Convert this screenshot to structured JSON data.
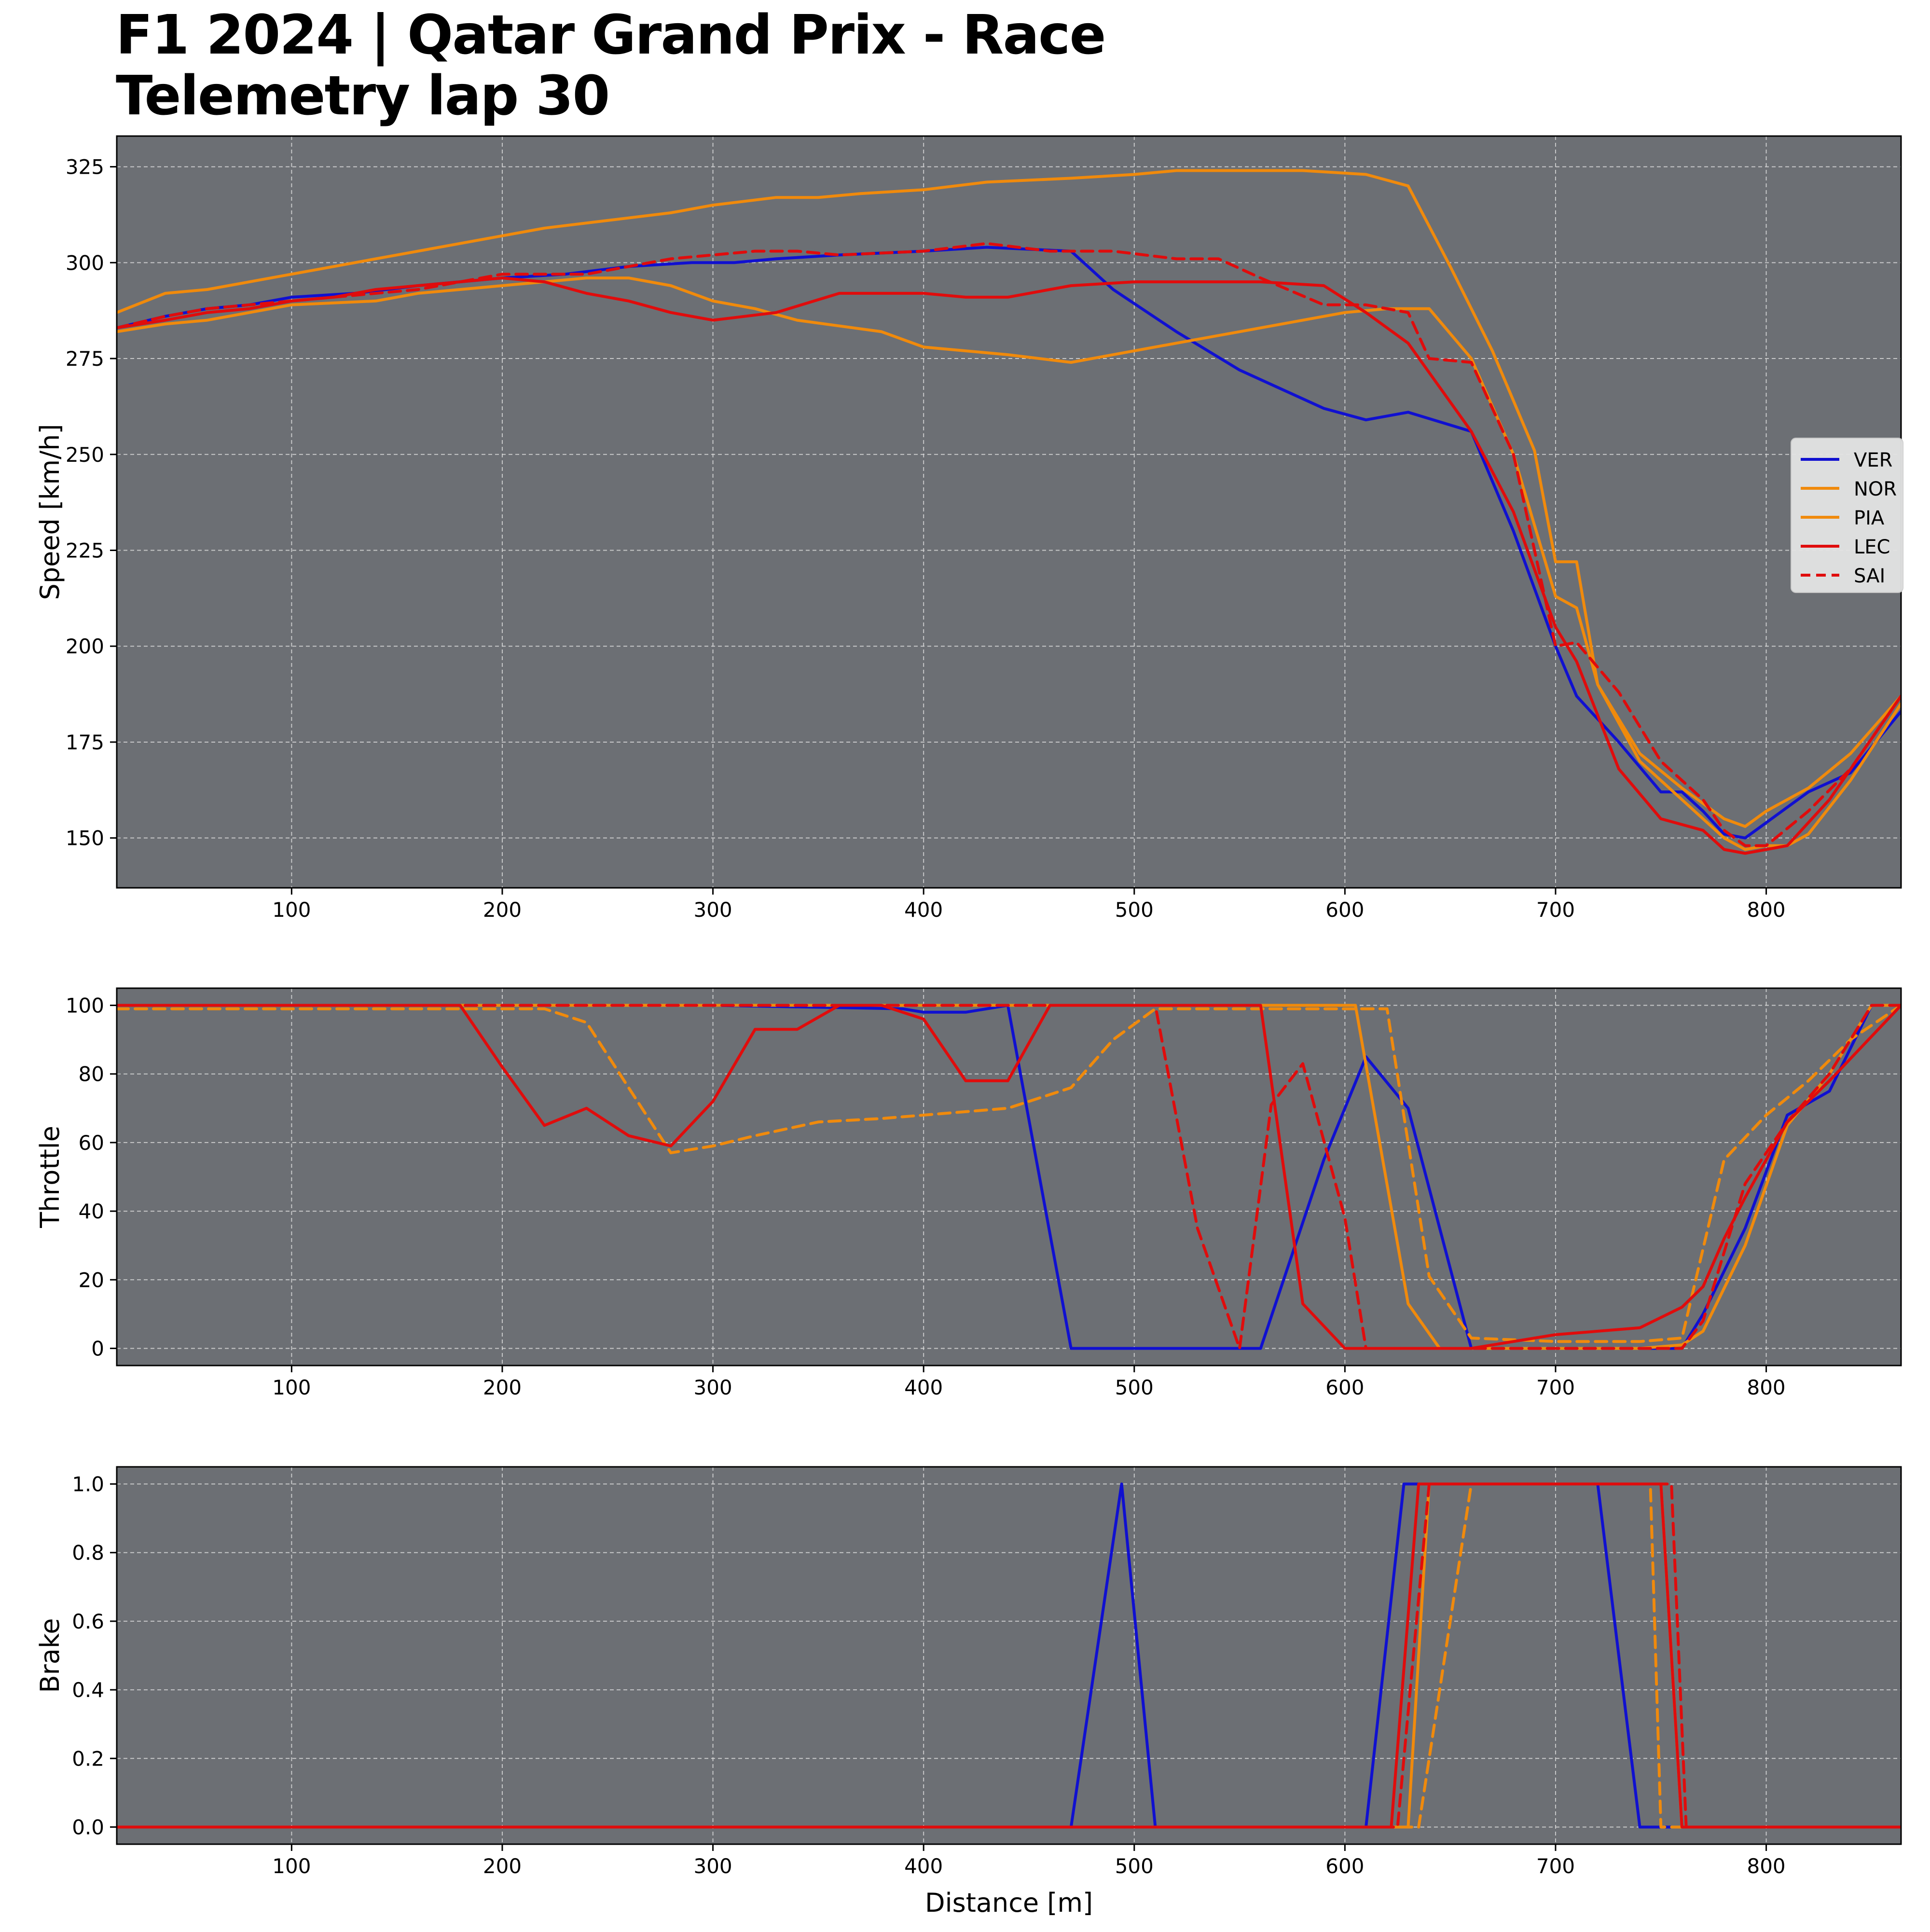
{
  "figure": {
    "title_line_1": "F1 2024 | Qatar Grand Prix - Race",
    "title_line_2": "Telemetry lap 30"
  },
  "colors": {
    "panel_bg": "#6c6f74",
    "grid": "#d8d8d8",
    "VER": "#1010d0",
    "NOR": "#f08a0c",
    "PIA": "#f08a0c",
    "LEC": "#e00c0c",
    "SAI": "#e00c0c"
  },
  "chart_data": [
    {
      "type": "line",
      "id": "speed",
      "ylabel": "Speed [km/h]",
      "xlabel": "",
      "xlim": [
        17,
        864
      ],
      "ylim": [
        137,
        333
      ],
      "xticks": [
        100,
        200,
        300,
        400,
        500,
        600,
        700,
        800
      ],
      "yticks": [
        150,
        175,
        200,
        225,
        250,
        275,
        300,
        325
      ],
      "grid": true,
      "legend": "center-right",
      "series": [
        {
          "name": "VER",
          "dash": false,
          "x": [
            17,
            40,
            60,
            80,
            100,
            130,
            160,
            200,
            230,
            260,
            290,
            310,
            330,
            360,
            400,
            430,
            470,
            490,
            520,
            550,
            590,
            610,
            630,
            660,
            680,
            700,
            710,
            730,
            750,
            760,
            770,
            780,
            790,
            800,
            810,
            820,
            840,
            864
          ],
          "y": [
            283,
            286,
            288,
            289,
            291,
            292,
            294,
            296,
            297,
            299,
            300,
            300,
            301,
            302,
            303,
            304,
            303,
            293,
            282,
            272,
            262,
            259,
            261,
            256,
            230,
            200,
            187,
            175,
            162,
            162,
            157,
            151,
            150,
            154,
            158,
            162,
            167,
            183
          ]
        },
        {
          "name": "NOR",
          "dash": false,
          "x": [
            17,
            40,
            60,
            80,
            100,
            120,
            150,
            180,
            200,
            220,
            250,
            280,
            300,
            330,
            350,
            370,
            400,
            430,
            470,
            500,
            520,
            550,
            580,
            610,
            630,
            650,
            670,
            690,
            700,
            710,
            720,
            740,
            760,
            780,
            790,
            800,
            810,
            820,
            840,
            864
          ],
          "y": [
            287,
            292,
            293,
            295,
            297,
            299,
            302,
            305,
            307,
            309,
            311,
            313,
            315,
            317,
            317,
            318,
            319,
            321,
            322,
            323,
            324,
            324,
            324,
            323,
            320,
            299,
            277,
            251,
            222,
            222,
            190,
            170,
            160,
            150,
            147,
            148,
            148,
            151,
            165,
            185
          ]
        },
        {
          "name": "PIA",
          "dash": false,
          "x": [
            17,
            40,
            60,
            80,
            100,
            140,
            160,
            200,
            240,
            260,
            280,
            300,
            320,
            340,
            380,
            400,
            440,
            470,
            500,
            520,
            550,
            580,
            600,
            620,
            640,
            660,
            680,
            700,
            710,
            720,
            740,
            760,
            780,
            790,
            800,
            820,
            840,
            864
          ],
          "y": [
            282,
            284,
            285,
            287,
            289,
            290,
            292,
            294,
            296,
            296,
            294,
            290,
            288,
            285,
            282,
            278,
            276,
            274,
            277,
            279,
            282,
            285,
            287,
            288,
            288,
            275,
            250,
            213,
            210,
            190,
            172,
            163,
            155,
            153,
            157,
            163,
            172,
            187
          ]
        },
        {
          "name": "LEC",
          "dash": false,
          "x": [
            17,
            40,
            60,
            80,
            100,
            120,
            140,
            160,
            180,
            200,
            220,
            240,
            260,
            280,
            300,
            330,
            360,
            400,
            420,
            440,
            470,
            500,
            520,
            560,
            590,
            610,
            630,
            660,
            680,
            700,
            710,
            730,
            750,
            770,
            780,
            790,
            810,
            830,
            864
          ],
          "y": [
            283,
            285,
            287,
            288,
            290,
            291,
            293,
            294,
            295,
            296,
            295,
            292,
            290,
            287,
            285,
            287,
            292,
            292,
            291,
            291,
            294,
            295,
            295,
            295,
            294,
            287,
            279,
            256,
            235,
            205,
            196,
            168,
            155,
            152,
            147,
            146,
            148,
            160,
            187
          ]
        },
        {
          "name": "SAI",
          "dash": true,
          "x": [
            17,
            40,
            60,
            80,
            100,
            120,
            140,
            160,
            180,
            200,
            220,
            240,
            260,
            280,
            300,
            320,
            340,
            360,
            400,
            430,
            460,
            490,
            520,
            540,
            560,
            590,
            610,
            630,
            640,
            660,
            680,
            700,
            710,
            730,
            750,
            770,
            780,
            790,
            800,
            820,
            840,
            864
          ],
          "y": [
            283,
            286,
            288,
            289,
            290,
            291,
            292,
            293,
            295,
            297,
            297,
            297,
            299,
            301,
            302,
            303,
            303,
            302,
            303,
            305,
            303,
            303,
            301,
            301,
            296,
            289,
            289,
            287,
            275,
            274,
            250,
            200,
            201,
            188,
            170,
            160,
            152,
            148,
            148,
            157,
            168,
            187
          ]
        }
      ]
    },
    {
      "type": "line",
      "id": "throttle",
      "ylabel": "Throttle",
      "xlabel": "",
      "xlim": [
        17,
        864
      ],
      "ylim": [
        -5,
        105
      ],
      "xticks": [
        100,
        200,
        300,
        400,
        500,
        600,
        700,
        800
      ],
      "yticks": [
        0,
        20,
        40,
        60,
        80,
        100
      ],
      "grid": true,
      "series": [
        {
          "name": "VER",
          "dash": false,
          "x": [
            17,
            100,
            200,
            300,
            390,
            400,
            420,
            440,
            470,
            500,
            520,
            540,
            560,
            590,
            610,
            630,
            660,
            700,
            740,
            760,
            770,
            790,
            810,
            830,
            850,
            864
          ],
          "y": [
            100,
            100,
            100,
            100,
            99,
            98,
            98,
            100,
            0,
            0,
            0,
            0,
            0,
            55,
            85,
            70,
            0,
            0,
            0,
            0,
            10,
            35,
            68,
            75,
            100,
            100
          ]
        },
        {
          "name": "NOR",
          "dash": false,
          "x": [
            17,
            100,
            200,
            300,
            400,
            500,
            520,
            550,
            590,
            605,
            630,
            645,
            660,
            700,
            740,
            760,
            770,
            790,
            810,
            830,
            850,
            864
          ],
          "y": [
            100,
            100,
            100,
            100,
            100,
            100,
            100,
            100,
            100,
            100,
            13,
            0,
            0,
            0,
            0,
            1,
            5,
            30,
            65,
            80,
            100,
            100
          ]
        },
        {
          "name": "PIA",
          "dash": true,
          "x": [
            17,
            100,
            200,
            220,
            240,
            260,
            280,
            300,
            320,
            350,
            380,
            420,
            440,
            470,
            490,
            510,
            540,
            560,
            600,
            620,
            640,
            660,
            700,
            740,
            760,
            780,
            800,
            820,
            840,
            864
          ],
          "y": [
            99,
            99,
            99,
            99,
            95,
            76,
            57,
            59,
            62,
            66,
            67,
            69,
            70,
            76,
            90,
            99,
            99,
            99,
            99,
            99,
            21,
            3,
            2,
            2,
            3,
            55,
            68,
            78,
            90,
            100
          ]
        },
        {
          "name": "LEC",
          "dash": false,
          "x": [
            17,
            100,
            180,
            200,
            220,
            240,
            260,
            280,
            300,
            320,
            340,
            360,
            380,
            400,
            420,
            440,
            460,
            500,
            540,
            560,
            580,
            600,
            620,
            660,
            680,
            700,
            720,
            740,
            760,
            770,
            780,
            790,
            810,
            830,
            864
          ],
          "y": [
            100,
            100,
            100,
            82,
            65,
            70,
            62,
            59,
            72,
            93,
            93,
            100,
            100,
            96,
            78,
            78,
            100,
            100,
            100,
            100,
            13,
            0,
            0,
            0,
            2,
            4,
            5,
            6,
            12,
            18,
            32,
            44,
            66,
            78,
            100
          ]
        },
        {
          "name": "SAI",
          "dash": true,
          "x": [
            17,
            100,
            200,
            300,
            400,
            440,
            510,
            530,
            550,
            565,
            580,
            600,
            610,
            660,
            700,
            740,
            760,
            770,
            790,
            810,
            830,
            850,
            864
          ],
          "y": [
            100,
            100,
            100,
            100,
            100,
            100,
            100,
            35,
            0,
            71,
            83,
            38,
            0,
            0,
            0,
            0,
            0,
            8,
            48,
            66,
            80,
            100,
            100
          ]
        }
      ]
    },
    {
      "type": "line",
      "id": "brake",
      "ylabel": "Brake",
      "xlabel": "Distance [m]",
      "xlim": [
        17,
        864
      ],
      "ylim": [
        -0.05,
        1.05
      ],
      "xticks": [
        100,
        200,
        300,
        400,
        500,
        600,
        700,
        800
      ],
      "yticks": [
        0.0,
        0.2,
        0.4,
        0.6,
        0.8,
        1.0
      ],
      "ytick_labels": [
        "0.0",
        "0.2",
        "0.4",
        "0.6",
        "0.8",
        "1.0"
      ],
      "grid": true,
      "series": [
        {
          "name": "VER",
          "dash": false,
          "x": [
            17,
            470,
            494,
            510,
            610,
            628,
            720,
            740,
            864
          ],
          "y": [
            0,
            0,
            1,
            0,
            0,
            1,
            1,
            0,
            0
          ]
        },
        {
          "name": "NOR",
          "dash": false,
          "x": [
            17,
            630,
            640,
            750,
            760,
            864
          ],
          "y": [
            0,
            0,
            1,
            1,
            0,
            0
          ]
        },
        {
          "name": "PIA",
          "dash": true,
          "x": [
            17,
            635,
            660,
            745,
            750,
            864
          ],
          "y": [
            0,
            0,
            1,
            1,
            0,
            0
          ]
        },
        {
          "name": "LEC",
          "dash": false,
          "x": [
            17,
            622,
            635,
            750,
            760,
            864
          ],
          "y": [
            0,
            0,
            1,
            1,
            0,
            0
          ]
        },
        {
          "name": "SAI",
          "dash": true,
          "x": [
            17,
            625,
            640,
            755,
            762,
            864
          ],
          "y": [
            0,
            0,
            1,
            1,
            0,
            0
          ]
        }
      ]
    }
  ]
}
